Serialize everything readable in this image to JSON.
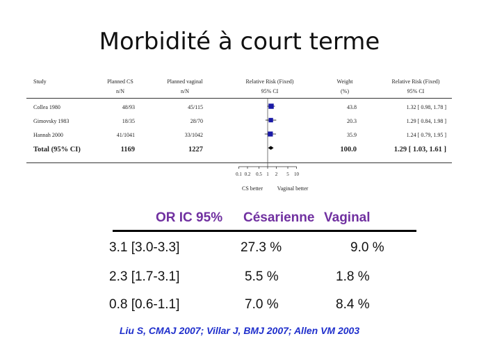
{
  "slide": {
    "title": "Morbidité à court terme",
    "references": "Liu S, CMAJ 2007; Villar J, BMJ 2007; Allen VM 2003"
  },
  "forest_plot": {
    "headers": {
      "study": "Study",
      "cs_line1": "Planned CS",
      "cs_line2": "n/N",
      "vag_line1": "Planned vaginal",
      "vag_line2": "n/N",
      "rr_line1": "Relative Risk (Fixed)",
      "rr_line2": "95% CI",
      "weight_line1": "Weight",
      "weight_line2": "(%)",
      "rrci_line1": "Relative Risk (Fixed)",
      "rrci_line2": "95% CI"
    },
    "rows": [
      {
        "study": "Collea 1980",
        "cs": "48/93",
        "vag": "45/115",
        "weight": "43.8",
        "rr_text": "1.32 [ 0.98, 1.78 ]"
      },
      {
        "study": "Gimovsky 1983",
        "cs": "18/35",
        "vag": "28/70",
        "weight": "20.3",
        "rr_text": "1.29 [ 0.84, 1.98 ]"
      },
      {
        "study": "Hannah 2000",
        "cs": "41/1041",
        "vag": "33/1042",
        "weight": "35.9",
        "rr_text": "1.24 [ 0.79, 1.95 ]"
      }
    ],
    "total": {
      "study": "Total (95% CI)",
      "cs": "1169",
      "vag": "1227",
      "weight": "100.0",
      "rr_text": "1.29 [ 1.03, 1.61 ]"
    },
    "axis_ticks": [
      "0.1",
      "0.2",
      "0.5",
      "1",
      "2",
      "5",
      "10"
    ],
    "axis_left_label": "CS better",
    "axis_right_label": "Vaginal better",
    "marker_color": "#1a1aa6"
  },
  "chart_data": {
    "type": "forest",
    "scale": "log",
    "xlim": [
      0.1,
      10
    ],
    "studies": [
      {
        "name": "Collea 1980",
        "rr": 1.32,
        "lower": 0.98,
        "upper": 1.78,
        "weight": 43.8
      },
      {
        "name": "Gimovsky 1983",
        "rr": 1.29,
        "lower": 0.84,
        "upper": 1.98,
        "weight": 20.3
      },
      {
        "name": "Hannah 2000",
        "rr": 1.24,
        "lower": 0.79,
        "upper": 1.95,
        "weight": 35.9
      }
    ],
    "pooled": {
      "name": "Total (95% CI)",
      "rr": 1.29,
      "lower": 1.03,
      "upper": 1.61
    }
  },
  "summary_table": {
    "headers": [
      "OR IC 95%",
      "Césarienne",
      "Vaginal"
    ],
    "header_color": "#7030a0",
    "rows": [
      [
        "3.1 [3.0-3.3]",
        "27.3 %",
        "9.0 %"
      ],
      [
        "2.3 [1.7-3.1]",
        "5.5 %",
        "1.8 %"
      ],
      [
        "0.8 [0.6-1.1]",
        "7.0 %",
        "8.4 %"
      ]
    ]
  }
}
